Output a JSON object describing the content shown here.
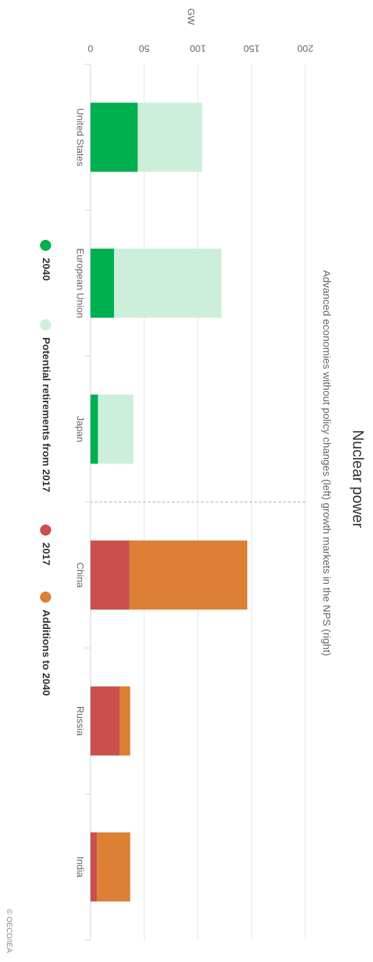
{
  "chart_data": {
    "type": "bar",
    "orientation": "horizontal-stacked",
    "title": "Nuclear power",
    "subtitle": "Advanced economies without policy changes (left) growth markets in the NPS (right)",
    "xlabel": "",
    "ylabel": "GW",
    "ylim": [
      0,
      200
    ],
    "yticks": [
      0,
      50,
      100,
      150,
      200
    ],
    "grid": true,
    "legend_position": "bottom",
    "categories": [
      "United States",
      "European Union",
      "Japan",
      "China",
      "Russia",
      "India"
    ],
    "groups": [
      {
        "categories": [
          "United States",
          "European Union",
          "Japan"
        ],
        "series": [
          {
            "name": "2040",
            "color": "#00b050",
            "values": [
              44,
              22,
              7
            ]
          },
          {
            "name": "Potential retirements from 2017",
            "color": "#ccefdc",
            "values": [
              60,
              100,
              33
            ]
          }
        ]
      },
      {
        "categories": [
          "China",
          "Russia",
          "India"
        ],
        "series": [
          {
            "name": "2017",
            "color": "#c9504d",
            "values": [
              36,
              27,
              6
            ]
          },
          {
            "name": "Additions to 2040",
            "color": "#dc8035",
            "values": [
              110,
              10,
              31
            ]
          }
        ]
      }
    ]
  },
  "legend": {
    "items": [
      {
        "label": "2040",
        "color": "#00b050"
      },
      {
        "label": "Potential retirements from 2017",
        "color": "#ccefdc"
      },
      {
        "label": "2017",
        "color": "#c9504d"
      },
      {
        "label": "Additions to 2040",
        "color": "#dc8035"
      }
    ]
  },
  "credit": "© OECD/IEA"
}
